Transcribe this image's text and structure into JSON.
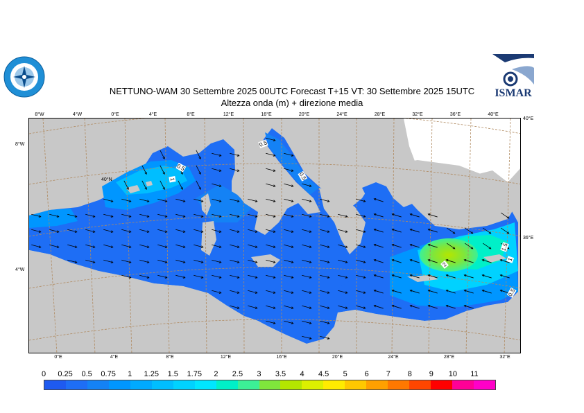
{
  "header": {
    "title_line1": "NETTUNO-WAM  30 Settembre 2025 00UTC Forecast T+15 VT: 30 Settembre 2025 15UTC",
    "title_line2": "Altezza onda (m) + direzione media"
  },
  "logos": {
    "left_name": "servizio-meteorologico-aeronautica-logo",
    "right_name": "ismar-logo",
    "right_text": "ISMAR"
  },
  "map": {
    "top_lon_labels": [
      "8°W",
      "4°W",
      "0°E",
      "4°E",
      "8°E",
      "12°E",
      "16°E",
      "20°E",
      "24°E",
      "28°E",
      "32°E",
      "36°E",
      "40°E"
    ],
    "bottom_lon_labels": [
      "0°E",
      "4°E",
      "8°E",
      "12°E",
      "16°E",
      "20°E",
      "24°E",
      "28°E",
      "32°E"
    ],
    "left_lat_labels": [
      "8°W",
      "4°W"
    ],
    "right_lat_labels": [
      "40°E",
      "36°E"
    ],
    "inner_label": "40°N",
    "contour_labels": [
      "0.5",
      "1",
      "0.5",
      "0.5",
      "2",
      "1.5",
      "1",
      "0.5"
    ],
    "colors": {
      "land": "#c8c8c8",
      "snow": "#ffffff",
      "sea_calm": "#1e6ef5",
      "sea_mid": "#0096ff",
      "sea_high": "#00dcff",
      "hotspot_green": "#7fe63c",
      "hotspot_yellow": "#b4e600",
      "grid": "#b08a60"
    }
  },
  "colorbar": {
    "labels": [
      "0",
      "0.25",
      "0.5",
      "0.75",
      "1",
      "1.25",
      "1.5",
      "1.75",
      "2",
      "2.5",
      "3",
      "3.5",
      "4",
      "4.5",
      "5",
      "6",
      "7",
      "8",
      "9",
      "10",
      "11"
    ],
    "colors": [
      "#1e5af0",
      "#1e6ef5",
      "#1482f5",
      "#0096ff",
      "#00aaff",
      "#00beff",
      "#00d2ff",
      "#00e6ff",
      "#00f0c8",
      "#3cf096",
      "#7fe63c",
      "#b4e600",
      "#dcf000",
      "#ffeb00",
      "#ffc800",
      "#ffa000",
      "#ff7800",
      "#ff4600",
      "#ff0000",
      "#ff0096",
      "#ff00c8"
    ]
  }
}
